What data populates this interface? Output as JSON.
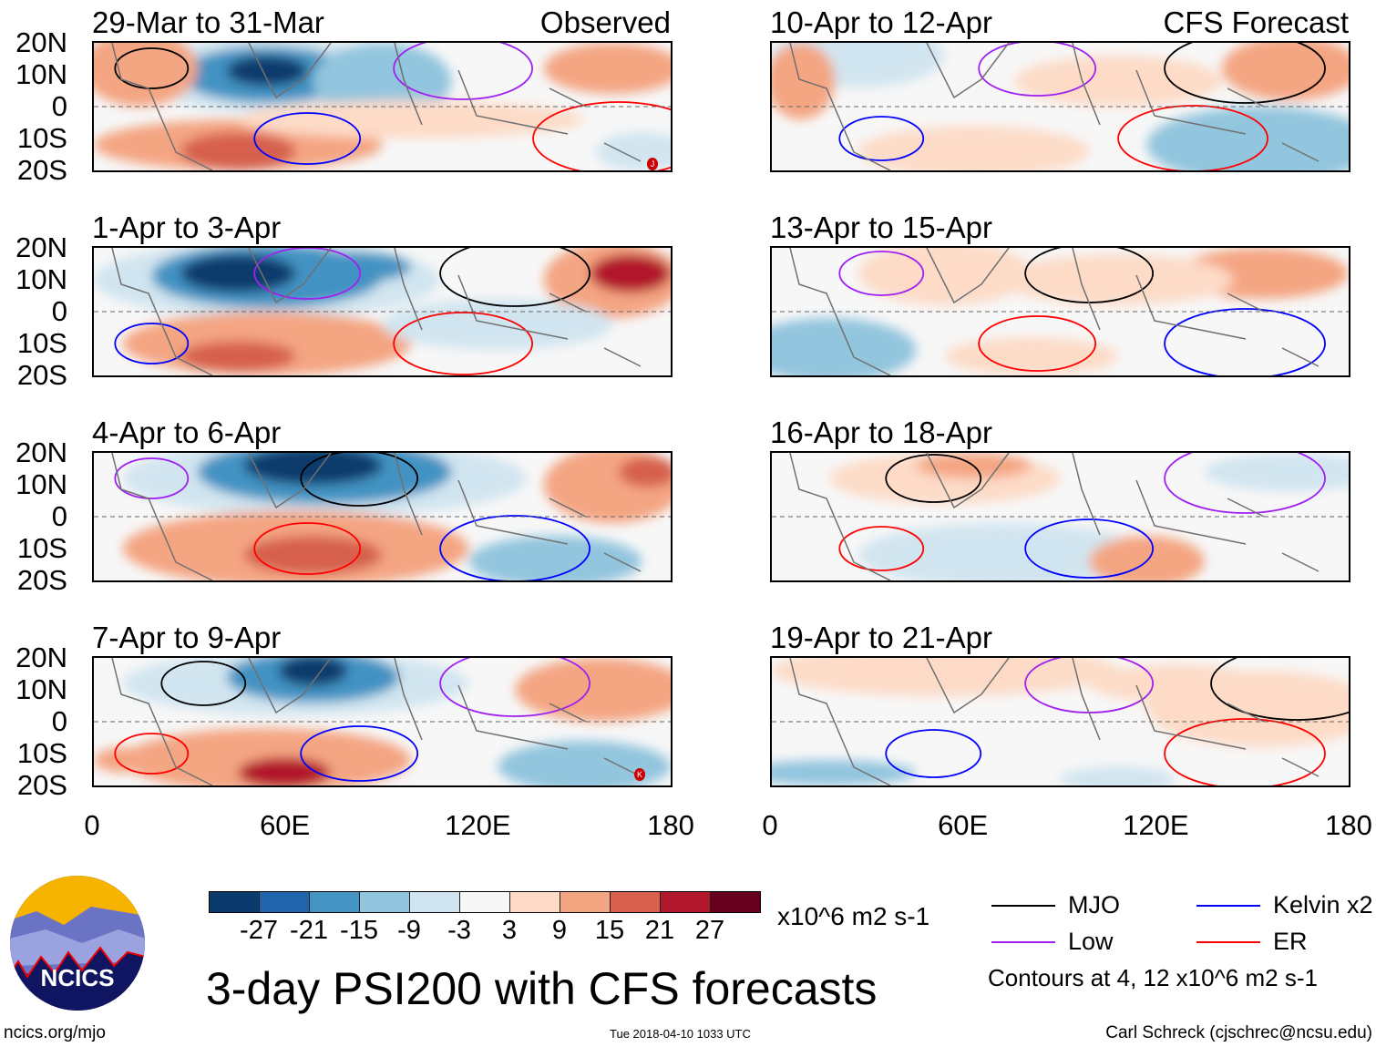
{
  "chart_data": {
    "type": "heatmap",
    "title": "3-day PSI200 with CFS forecasts",
    "units": "x10^6 m2 s-1",
    "x_ticks": [
      "0",
      "60E",
      "120E",
      "180"
    ],
    "y_ticks": [
      "20N",
      "10N",
      "0",
      "10S",
      "20S"
    ],
    "xlim": [
      0,
      180
    ],
    "ylim": [
      -20,
      20
    ],
    "colorbar": {
      "labels": [
        "-27",
        "-21",
        "-15",
        "-9",
        "-3",
        "3",
        "9",
        "15",
        "21",
        "27"
      ],
      "colors": [
        "#0b3a6c",
        "#2166ac",
        "#4393c3",
        "#92c5de",
        "#d1e5f0",
        "#f7f7f7",
        "#fddbc7",
        "#f4a582",
        "#d6604d",
        "#b2182b",
        "#67001f"
      ]
    },
    "columns": [
      {
        "header": "Observed",
        "panels": [
          "29-Mar to 31-Mar",
          "1-Apr to 3-Apr",
          "4-Apr to 6-Apr",
          "7-Apr to 9-Apr"
        ]
      },
      {
        "header": "CFS Forecast",
        "panels": [
          "10-Apr to 12-Apr",
          "13-Apr to 15-Apr",
          "16-Apr to 18-Apr",
          "19-Apr to 21-Apr"
        ]
      }
    ],
    "legend": [
      {
        "label": "MJO",
        "color": "#000000"
      },
      {
        "label": "Kelvin x2",
        "color": "#0000ff"
      },
      {
        "label": "Low",
        "color": "#a020f0"
      },
      {
        "label": "ER",
        "color": "#ff0000"
      }
    ],
    "contour_note": "Contours at 4, 12 x10^6 m2 s-1",
    "storm_markers": [
      "J",
      "K"
    ]
  },
  "footer": {
    "url": "ncics.org/mjo",
    "timestamp": "Tue 2018-04-10 1033 UTC",
    "credit": "Carl Schreck (cjschrec@ncsu.edu)",
    "logo_text": "NCICS"
  }
}
